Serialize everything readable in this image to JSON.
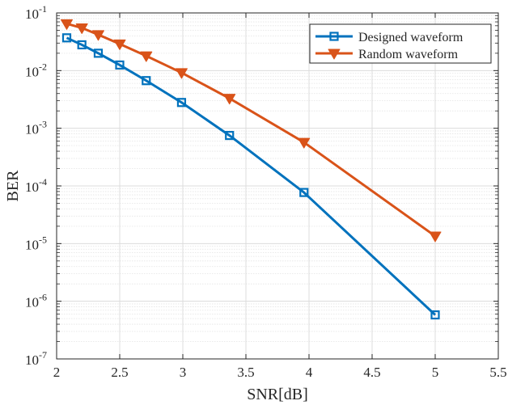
{
  "chart_data": {
    "type": "line",
    "xlabel": "SNR[dB]",
    "ylabel": "BER",
    "xlim": [
      2,
      5.5
    ],
    "ylim": [
      1e-07,
      0.1
    ],
    "yscale": "log",
    "grid": true,
    "legend_position": "top-right",
    "x_ticks": [
      "2",
      "2.5",
      "3",
      "3.5",
      "4",
      "4.5",
      "5",
      "5.5"
    ],
    "y_ticks": [
      {
        "base": "10",
        "exp": "-1"
      },
      {
        "base": "10",
        "exp": "-2"
      },
      {
        "base": "10",
        "exp": "-3"
      },
      {
        "base": "10",
        "exp": "-4"
      },
      {
        "base": "10",
        "exp": "-5"
      },
      {
        "base": "10",
        "exp": "-6"
      },
      {
        "base": "10",
        "exp": "-7"
      }
    ],
    "series": [
      {
        "name": "Designed waveform",
        "color": "#0072BD",
        "marker": "square",
        "x": [
          2.08,
          2.2,
          2.33,
          2.5,
          2.71,
          2.99,
          3.37,
          3.96,
          5.0
        ],
        "y": [
          0.037,
          0.028,
          0.02,
          0.0125,
          0.0067,
          0.0028,
          0.00075,
          7.7e-05,
          5.8e-07
        ]
      },
      {
        "name": "Random waveform",
        "color": "#D95319",
        "marker": "triangle-down",
        "x": [
          2.08,
          2.2,
          2.33,
          2.5,
          2.71,
          2.99,
          3.37,
          3.96,
          5.0
        ],
        "y": [
          0.065,
          0.055,
          0.042,
          0.029,
          0.018,
          0.0092,
          0.0033,
          0.00057,
          1.35e-05
        ]
      }
    ]
  }
}
